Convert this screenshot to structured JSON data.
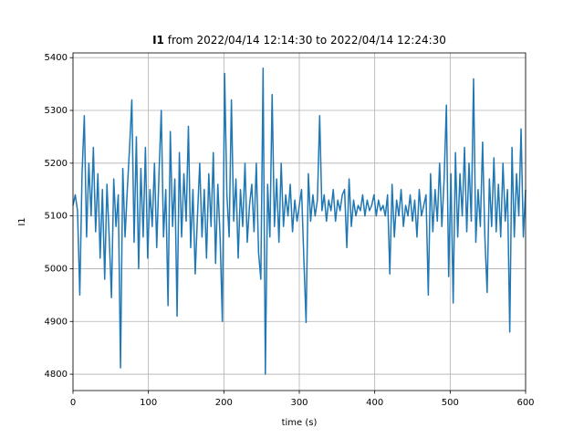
{
  "chart_data": {
    "type": "line",
    "title_label": "I1",
    "title": "from 2022/04/14 12:14:30 to 2022/04/14 12:24:30",
    "xlabel": "time (s)",
    "ylabel": "I1",
    "color": "#1f77b4",
    "grid": true,
    "xlim": [
      0,
      600
    ],
    "ylim": [
      4769,
      5409
    ],
    "xticks": [
      0,
      100,
      200,
      300,
      400,
      500,
      600
    ],
    "yticks": [
      4800,
      4900,
      5000,
      5100,
      5200,
      5300,
      5400
    ],
    "x": [
      0,
      3,
      6,
      9,
      12,
      15,
      18,
      21,
      24,
      27,
      30,
      33,
      36,
      39,
      42,
      45,
      48,
      51,
      54,
      57,
      60,
      63,
      66,
      69,
      72,
      75,
      78,
      81,
      84,
      87,
      90,
      93,
      96,
      99,
      102,
      105,
      108,
      111,
      114,
      117,
      120,
      123,
      126,
      129,
      132,
      135,
      138,
      141,
      144,
      147,
      150,
      153,
      156,
      159,
      162,
      165,
      168,
      171,
      174,
      177,
      180,
      183,
      186,
      189,
      192,
      195,
      198,
      201,
      204,
      207,
      210,
      213,
      216,
      219,
      222,
      225,
      228,
      231,
      234,
      237,
      240,
      243,
      246,
      249,
      252,
      255,
      258,
      261,
      264,
      267,
      270,
      273,
      276,
      279,
      282,
      285,
      288,
      291,
      294,
      297,
      300,
      303,
      306,
      309,
      312,
      315,
      318,
      321,
      324,
      327,
      330,
      333,
      336,
      339,
      342,
      345,
      348,
      351,
      354,
      357,
      360,
      363,
      366,
      369,
      372,
      375,
      378,
      381,
      384,
      387,
      390,
      393,
      396,
      399,
      402,
      405,
      408,
      411,
      414,
      417,
      420,
      423,
      426,
      429,
      432,
      435,
      438,
      441,
      444,
      447,
      450,
      453,
      456,
      459,
      462,
      465,
      468,
      471,
      474,
      477,
      480,
      483,
      486,
      489,
      492,
      495,
      498,
      501,
      504,
      507,
      510,
      513,
      516,
      519,
      522,
      525,
      528,
      531,
      534,
      537,
      540,
      543,
      546,
      549,
      552,
      555,
      558,
      561,
      564,
      567,
      570,
      573,
      576,
      579,
      582,
      585,
      588,
      591,
      594,
      597,
      600
    ],
    "values": [
      5120,
      5140,
      5110,
      4950,
      5180,
      5290,
      5060,
      5200,
      5100,
      5230,
      5070,
      5180,
      5020,
      5150,
      4980,
      5160,
      5060,
      4945,
      5170,
      5080,
      5140,
      4812,
      5190,
      5060,
      5150,
      5230,
      5320,
      5050,
      5250,
      5000,
      5190,
      5060,
      5230,
      5020,
      5150,
      5080,
      5200,
      5040,
      5180,
      5300,
      5060,
      5150,
      4930,
      5260,
      5080,
      5170,
      4910,
      5220,
      5060,
      5180,
      5090,
      5270,
      5040,
      5150,
      4990,
      5100,
      5200,
      5060,
      5150,
      5020,
      5180,
      5080,
      5220,
      5010,
      5160,
      5060,
      4900,
      5370,
      5140,
      5060,
      5320,
      5090,
      5170,
      5020,
      5150,
      5080,
      5200,
      5050,
      5120,
      5160,
      5070,
      5200,
      5030,
      4980,
      5380,
      4800,
      5160,
      5060,
      5330,
      5080,
      5170,
      5050,
      5200,
      5080,
      5140,
      5100,
      5160,
      5070,
      5130,
      5090,
      5120,
      5150,
      5020,
      4898,
      5180,
      5090,
      5140,
      5100,
      5130,
      5290,
      5110,
      5140,
      5090,
      5130,
      5110,
      5150,
      5090,
      5130,
      5110,
      5140,
      5150,
      5040,
      5170,
      5080,
      5130,
      5100,
      5120,
      5110,
      5140,
      5100,
      5130,
      5110,
      5120,
      5140,
      5100,
      5130,
      5110,
      5120,
      5100,
      5140,
      4990,
      5160,
      5060,
      5130,
      5100,
      5150,
      5080,
      5120,
      5100,
      5140,
      5090,
      5130,
      5060,
      5150,
      5100,
      5120,
      5140,
      4950,
      5180,
      5070,
      5150,
      5090,
      5200,
      5080,
      5170,
      5310,
      4985,
      5180,
      4935,
      5220,
      5060,
      5180,
      5100,
      5230,
      5070,
      5200,
      5090,
      5360,
      5050,
      5150,
      5080,
      5240,
      5060,
      4955,
      5170,
      5080,
      5210,
      5070,
      5160,
      5060,
      5200,
      5090,
      5150,
      4880,
      5230,
      5060,
      5180,
      5100,
      5265,
      5060,
      5150
    ]
  }
}
